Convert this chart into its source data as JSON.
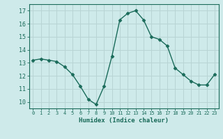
{
  "x": [
    0,
    1,
    2,
    3,
    4,
    5,
    6,
    7,
    8,
    9,
    10,
    11,
    12,
    13,
    14,
    15,
    16,
    17,
    18,
    19,
    20,
    21,
    22,
    23
  ],
  "y": [
    13.2,
    13.3,
    13.2,
    13.1,
    12.7,
    12.1,
    11.2,
    10.2,
    9.8,
    11.2,
    13.5,
    16.3,
    16.8,
    17.0,
    16.3,
    15.0,
    14.8,
    14.3,
    12.6,
    12.1,
    11.6,
    11.3,
    11.3,
    12.1
  ],
  "xlim": [
    -0.5,
    23.5
  ],
  "ylim": [
    9.5,
    17.5
  ],
  "yticks": [
    10,
    11,
    12,
    13,
    14,
    15,
    16,
    17
  ],
  "xticks": [
    0,
    1,
    2,
    3,
    4,
    5,
    6,
    7,
    8,
    9,
    10,
    11,
    12,
    13,
    14,
    15,
    16,
    17,
    18,
    19,
    20,
    21,
    22,
    23
  ],
  "xlabel": "Humidex (Indice chaleur)",
  "line_color": "#1a6b5a",
  "marker": "D",
  "marker_size": 2.5,
  "bg_color": "#ceeaea",
  "grid_color": "#b8d4d4",
  "axis_color": "#1a6b5a",
  "tick_color": "#1a6b5a",
  "label_color": "#1a6b5a"
}
